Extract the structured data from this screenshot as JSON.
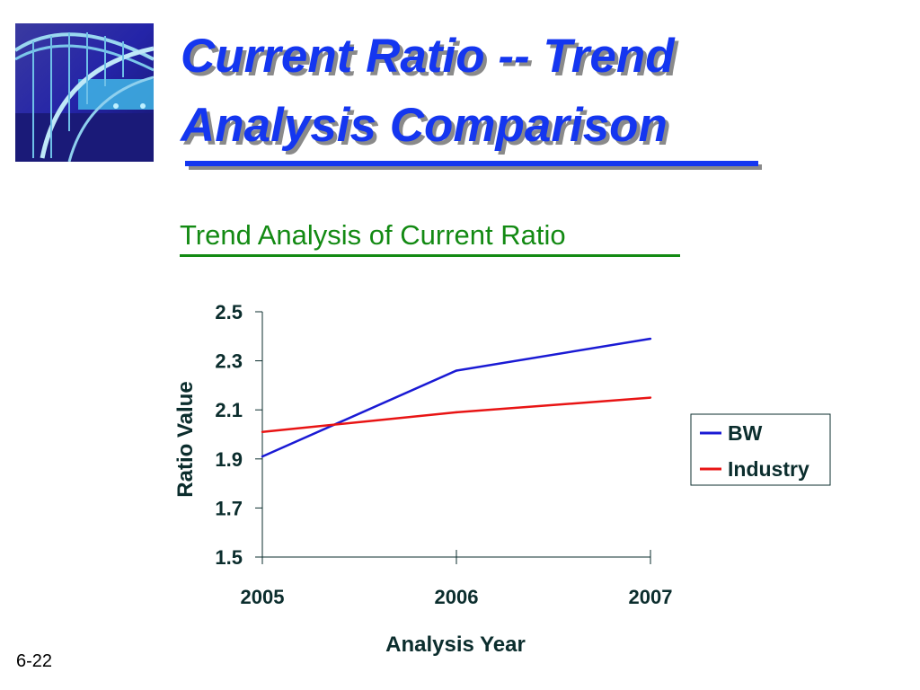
{
  "slide": {
    "title_line1": "Current Ratio -- Trend",
    "title_line2": "Analysis Comparison",
    "subtitle": "Trend Analysis of Current Ratio",
    "slide_number": "6-22"
  },
  "colors": {
    "title": "#1436f0",
    "subtitle": "#138a13",
    "axis_text": "#0b2d2d",
    "bw_series": "#1a1ad4",
    "industry_series": "#e81414"
  },
  "chart_data": {
    "type": "line",
    "title": "Trend Analysis of Current Ratio",
    "xlabel": "Analysis Year",
    "ylabel": "Ratio Value",
    "categories": [
      "2005",
      "2006",
      "2007"
    ],
    "y_ticks": [
      "1.5",
      "1.7",
      "1.9",
      "2.1",
      "2.3",
      "2.5"
    ],
    "ylim": [
      1.5,
      2.5
    ],
    "grid": false,
    "legend_position": "right",
    "series": [
      {
        "name": "BW",
        "values": [
          1.91,
          2.26,
          2.39
        ],
        "color": "#1a1ad4"
      },
      {
        "name": "Industry",
        "values": [
          2.01,
          2.09,
          2.15
        ],
        "color": "#e81414"
      }
    ]
  }
}
